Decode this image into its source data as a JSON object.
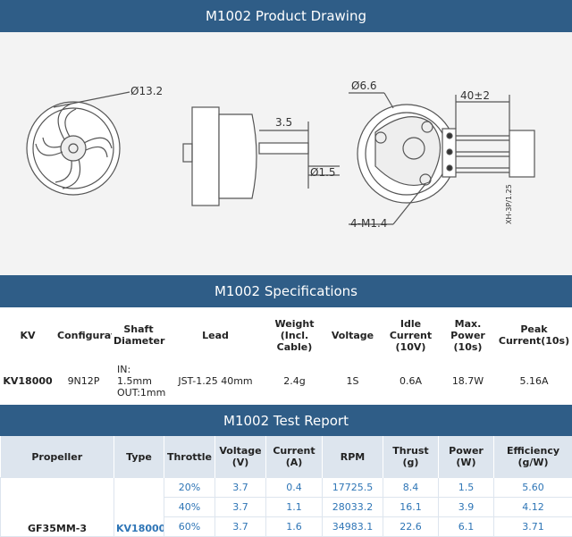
{
  "drawing": {
    "title": "M1002 Product Drawing",
    "dims": [
      "Ø13.2",
      "3.5",
      "Ø1.5",
      "Ø6.6",
      "40±2",
      "4-M1.4",
      "XH-3P/1.25"
    ]
  },
  "specs": {
    "title": "M1002 Specifications",
    "headers": [
      "KV",
      "Configuration",
      "Shaft Diameter",
      "Lead",
      "Weight (Incl. Cable)",
      "Voltage",
      "Idle Current (10V)",
      "Max. Power (10s)",
      "Peak Current(10s)"
    ],
    "row": [
      "KV18000",
      "9N12P",
      [
        "IN: 1.5mm",
        "OUT:1mm"
      ],
      "JST-1.25 40mm",
      "2.4g",
      "1S",
      "0.6A",
      "18.7W",
      "5.16A"
    ]
  },
  "report": {
    "title": "M1002 Test Report",
    "headers": [
      "Propeller",
      "Type",
      "Throttle",
      "Voltage (V)",
      "Current (A)",
      "RPM",
      "Thrust (g)",
      "Power (W)",
      "Efficiency (g/W)"
    ],
    "propeller": "GF35MM-3",
    "type": "KV18000",
    "rows": [
      [
        "20%",
        "3.7",
        "0.4",
        "17725.5",
        "8.4",
        "1.5",
        "5.60"
      ],
      [
        "40%",
        "3.7",
        "1.1",
        "28033.2",
        "16.1",
        "3.9",
        "4.12"
      ],
      [
        "60%",
        "3.7",
        "1.6",
        "34983.1",
        "22.6",
        "6.1",
        "3.71"
      ]
    ]
  }
}
